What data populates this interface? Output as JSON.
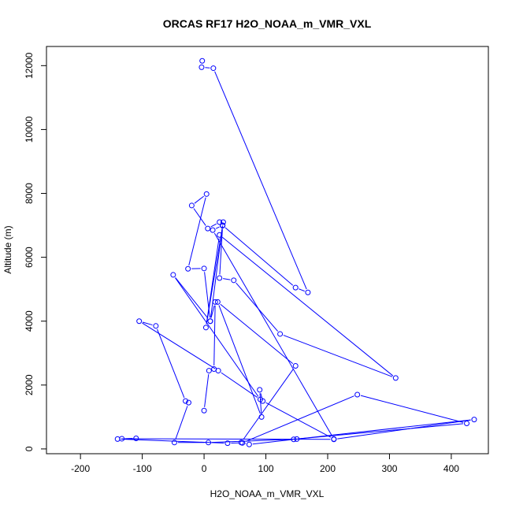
{
  "chart_data": {
    "type": "line",
    "title": "ORCAS RF17 H2O_NOAA_m_VMR_VXL",
    "xlabel": "H2O_NOAA_m_VMR_VXL",
    "ylabel": "Altitude (m)",
    "xlim": [
      -255,
      460
    ],
    "ylim": [
      -150,
      12600
    ],
    "xticks": [
      -200,
      -100,
      0,
      100,
      200,
      300,
      400
    ],
    "yticks": [
      0,
      2000,
      4000,
      6000,
      8000,
      10000,
      12000
    ],
    "grid": false,
    "series_color": "#0000ff",
    "marker": "open-circle",
    "series": [
      {
        "x": [
          -3,
          -4,
          15,
          168,
          148,
          30,
          14,
          210,
          95,
          90,
          93,
          22,
          148,
          60,
          73,
          150,
          425,
          248,
          62,
          38,
          -140,
          -110,
          -133,
          210,
          437,
          145,
          7,
          -48,
          -25,
          -30,
          -78,
          -105,
          23,
          91,
          -50,
          10,
          30,
          31,
          3,
          25,
          310,
          123,
          48,
          25,
          30,
          25,
          6,
          -20,
          4,
          -26,
          0,
          10,
          18,
          16,
          8,
          0
        ],
        "y": [
          12150,
          11950,
          11920,
          4900,
          5050,
          7000,
          6850,
          310,
          1500,
          1850,
          1000,
          4600,
          2600,
          200,
          140,
          310,
          800,
          1700,
          190,
          180,
          310,
          330,
          320,
          300,
          920,
          300,
          200,
          200,
          1450,
          1500,
          3850,
          4000,
          2450,
          1550,
          5450,
          4000,
          7000,
          7100,
          3800,
          6700,
          2220,
          3600,
          5280,
          5350,
          6990,
          7100,
          6900,
          7620,
          7980,
          5640,
          5650,
          4000,
          4600,
          2500,
          2450,
          1200
        ]
      }
    ]
  }
}
